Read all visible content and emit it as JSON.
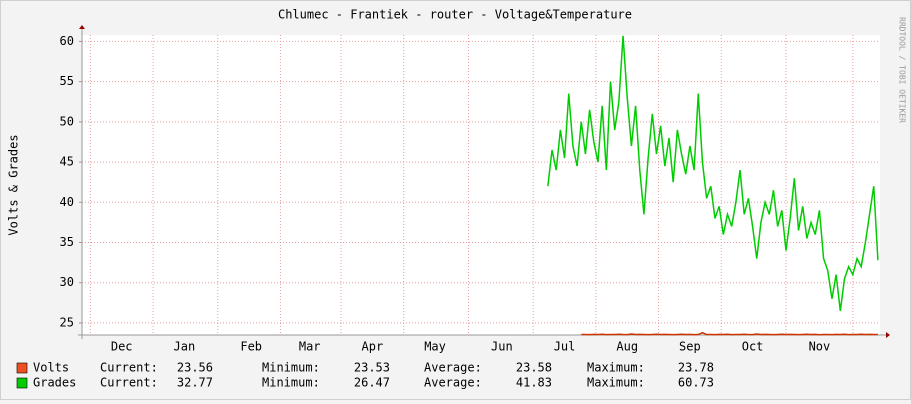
{
  "chart_data": {
    "type": "line",
    "title": "Chlumec - Frantiek - router - Voltage&Temperature",
    "ylabel": "Volts & Grades",
    "watermark": "RRDTOOL / TOBI OETIKER",
    "ylim": [
      23.5,
      60.8
    ],
    "yticks": [
      25,
      30,
      35,
      40,
      45,
      50,
      55,
      60
    ],
    "grid": true,
    "categories": [
      null,
      null,
      null,
      null,
      null,
      null,
      null,
      null,
      null,
      "Dec",
      null,
      null,
      null,
      null,
      null,
      null,
      null,
      null,
      null,
      null,
      null,
      null,
      null,
      null,
      "Jan",
      null,
      null,
      null,
      null,
      null,
      null,
      null,
      null,
      null,
      null,
      null,
      null,
      null,
      null,
      null,
      "Feb",
      null,
      null,
      null,
      null,
      null,
      null,
      null,
      null,
      null,
      null,
      null,
      null,
      null,
      "Mar",
      null,
      null,
      null,
      null,
      null,
      null,
      null,
      null,
      null,
      null,
      null,
      null,
      null,
      null,
      "Apr",
      null,
      null,
      null,
      null,
      null,
      null,
      null,
      null,
      null,
      null,
      null,
      null,
      null,
      null,
      "May",
      null,
      null,
      null,
      null,
      null,
      null,
      null,
      null,
      null,
      null,
      null,
      null,
      null,
      null,
      null,
      "Jun",
      null,
      null,
      null,
      null,
      null,
      null,
      null,
      null,
      null,
      null,
      null,
      null,
      null,
      null,
      "Jul",
      null,
      null,
      null,
      null,
      null,
      null,
      null,
      null,
      null,
      null,
      null,
      null,
      null,
      null,
      "Aug",
      null,
      null,
      null,
      null,
      null,
      null,
      null,
      null,
      null,
      null,
      null,
      null,
      null,
      null,
      "Sep",
      null,
      null,
      null,
      null,
      null,
      null,
      null,
      null,
      null,
      null,
      null,
      null,
      null,
      null,
      "Oct",
      null,
      null,
      null,
      null,
      null,
      null,
      null,
      null,
      null,
      null,
      null,
      null,
      null,
      null,
      null,
      "Nov",
      null,
      null,
      null,
      null,
      null,
      null,
      null,
      null,
      null,
      null,
      null,
      null,
      null,
      null
    ],
    "stat_labels": [
      "Current:",
      "Minimum:",
      "Average:",
      "Maximum:"
    ],
    "series": [
      {
        "name": "Volts",
        "color": "#cc3300",
        "legend_color": "#f05020",
        "stats": [
          23.56,
          23.53,
          23.58,
          23.78
        ],
        "values": [
          null,
          null,
          null,
          null,
          null,
          null,
          null,
          null,
          null,
          null,
          null,
          null,
          null,
          null,
          null,
          null,
          null,
          null,
          null,
          null,
          null,
          null,
          null,
          null,
          null,
          null,
          null,
          null,
          null,
          null,
          null,
          null,
          null,
          null,
          null,
          null,
          null,
          null,
          null,
          null,
          null,
          null,
          null,
          null,
          null,
          null,
          null,
          null,
          null,
          null,
          null,
          null,
          null,
          null,
          null,
          null,
          null,
          null,
          null,
          null,
          null,
          null,
          null,
          null,
          null,
          null,
          null,
          null,
          null,
          null,
          null,
          null,
          null,
          null,
          null,
          null,
          null,
          null,
          null,
          null,
          null,
          null,
          null,
          null,
          null,
          null,
          null,
          null,
          null,
          null,
          null,
          null,
          null,
          null,
          null,
          null,
          null,
          null,
          null,
          null,
          null,
          null,
          null,
          null,
          null,
          null,
          null,
          null,
          null,
          null,
          null,
          null,
          null,
          null,
          null,
          null,
          null,
          null,
          null,
          23.56,
          23.57,
          23.55,
          23.58,
          23.56,
          23.6,
          23.55,
          23.56,
          23.57,
          23.59,
          23.56,
          23.55,
          23.62,
          23.56,
          23.58,
          23.56,
          23.55,
          23.57,
          23.6,
          23.56,
          23.58,
          23.56,
          23.55,
          23.57,
          23.6,
          23.56,
          23.58,
          23.55,
          23.56,
          23.78,
          23.56,
          23.57,
          23.55,
          23.58,
          23.56,
          23.6,
          23.55,
          23.56,
          23.57,
          23.59,
          23.56,
          23.55,
          23.62,
          23.56,
          23.58,
          23.56,
          23.55,
          23.57,
          23.6,
          23.56,
          23.58,
          23.56,
          23.55,
          23.57,
          23.6,
          23.56,
          23.58,
          23.53,
          23.56,
          23.57,
          23.55,
          23.58,
          23.56,
          23.6,
          23.55,
          23.56,
          23.57,
          23.59,
          23.56,
          23.58,
          23.57,
          23.56
        ]
      },
      {
        "name": "Grades",
        "color": "#00cc00",
        "legend_color": "#00cc00",
        "stats": [
          32.77,
          26.47,
          41.83,
          60.73
        ],
        "values": [
          null,
          null,
          null,
          null,
          null,
          null,
          null,
          null,
          null,
          null,
          null,
          null,
          null,
          null,
          null,
          null,
          null,
          null,
          null,
          null,
          null,
          null,
          null,
          null,
          null,
          null,
          null,
          null,
          null,
          null,
          null,
          null,
          null,
          null,
          null,
          null,
          null,
          null,
          null,
          null,
          null,
          null,
          null,
          null,
          null,
          null,
          null,
          null,
          null,
          null,
          null,
          null,
          null,
          null,
          null,
          null,
          null,
          null,
          null,
          null,
          null,
          null,
          null,
          null,
          null,
          null,
          null,
          null,
          null,
          null,
          null,
          null,
          null,
          null,
          null,
          null,
          null,
          null,
          null,
          null,
          null,
          null,
          null,
          null,
          null,
          null,
          null,
          null,
          null,
          null,
          null,
          null,
          null,
          null,
          null,
          null,
          null,
          null,
          null,
          null,
          null,
          null,
          null,
          null,
          null,
          null,
          null,
          null,
          null,
          null,
          null,
          42.0,
          46.5,
          44.0,
          49.0,
          45.5,
          53.5,
          47.0,
          44.5,
          50.0,
          46.0,
          51.5,
          47.5,
          45.0,
          52.0,
          44.0,
          55.0,
          49.0,
          52.5,
          60.7,
          53.0,
          47.0,
          52.0,
          44.0,
          38.5,
          45.5,
          51.0,
          46.0,
          49.5,
          44.5,
          48.0,
          42.5,
          49.0,
          46.0,
          43.5,
          47.0,
          44.0,
          53.5,
          45.0,
          40.5,
          42.0,
          38.0,
          39.5,
          36.0,
          38.5,
          37.0,
          40.0,
          44.0,
          38.5,
          40.5,
          37.0,
          33.0,
          37.5,
          40.0,
          38.5,
          41.5,
          37.0,
          39.0,
          34.0,
          38.0,
          43.0,
          36.5,
          39.5,
          35.5,
          37.5,
          36.0,
          39.0,
          33.0,
          31.5,
          28.0,
          31.0,
          26.5,
          30.5,
          32.0,
          31.0,
          33.0,
          32.0,
          35.0,
          38.5,
          42.0,
          32.8
        ]
      }
    ]
  }
}
